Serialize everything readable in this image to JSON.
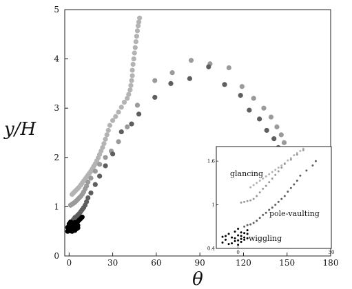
{
  "chart_data": [
    {
      "type": "scatter",
      "xlabel": "θ",
      "ylabel": "y/H",
      "xlim": [
        -3,
        180
      ],
      "ylim": [
        0,
        5
      ],
      "xticks": [
        0,
        30,
        60,
        90,
        120,
        150,
        180
      ],
      "yticks": [
        0,
        1,
        2,
        3,
        4,
        5
      ],
      "grid": false,
      "series": [
        {
          "color": "#b3b3b3",
          "points": [
            [
              2,
              1.25
            ],
            [
              3,
              1.28
            ],
            [
              4,
              1.31
            ],
            [
              5,
              1.34
            ],
            [
              6,
              1.37
            ],
            [
              7,
              1.4
            ],
            [
              8,
              1.44
            ],
            [
              9,
              1.48
            ],
            [
              10,
              1.52
            ],
            [
              11,
              1.56
            ],
            [
              12,
              1.6
            ],
            [
              13,
              1.64
            ],
            [
              14,
              1.68
            ],
            [
              15,
              1.72
            ],
            [
              16,
              1.77
            ],
            [
              17,
              1.82
            ],
            [
              18,
              1.87
            ],
            [
              19,
              1.93
            ],
            [
              20,
              1.99
            ],
            [
              21,
              2.06
            ],
            [
              22,
              2.13
            ],
            [
              23,
              2.2
            ],
            [
              24,
              2.28
            ],
            [
              25,
              2.37
            ],
            [
              26,
              2.46
            ],
            [
              27,
              2.55
            ],
            [
              28,
              2.65
            ],
            [
              30,
              2.75
            ],
            [
              32,
              2.83
            ],
            [
              34,
              2.92
            ],
            [
              36,
              3.02
            ],
            [
              38,
              3.12
            ],
            [
              40,
              3.2
            ],
            [
              41,
              3.28
            ],
            [
              42,
              3.37
            ],
            [
              42.5,
              3.46
            ],
            [
              43,
              3.56
            ],
            [
              43.5,
              3.66
            ],
            [
              43.5,
              3.77
            ],
            [
              44,
              3.89
            ],
            [
              44.5,
              4.0
            ],
            [
              45,
              4.12
            ],
            [
              45.5,
              4.23
            ],
            [
              46,
              4.35
            ],
            [
              46.5,
              4.46
            ],
            [
              47,
              4.57
            ],
            [
              47.5,
              4.67
            ],
            [
              48,
              4.75
            ],
            [
              48.5,
              4.83
            ]
          ]
        },
        {
          "color": "#9a9a9a",
          "points": [
            [
              1,
              1.03
            ],
            [
              2,
              1.05
            ],
            [
              3,
              1.07
            ],
            [
              4,
              1.09
            ],
            [
              5,
              1.12
            ],
            [
              6,
              1.15
            ],
            [
              7,
              1.18
            ],
            [
              8,
              1.21
            ],
            [
              9,
              1.25
            ],
            [
              10,
              1.3
            ],
            [
              11,
              1.36
            ],
            [
              12,
              1.42
            ],
            [
              13,
              1.5
            ],
            [
              15,
              1.58
            ],
            [
              18,
              1.72
            ],
            [
              21,
              1.86
            ],
            [
              25,
              2.0
            ],
            [
              29,
              2.13
            ],
            [
              34,
              2.32
            ],
            [
              40,
              2.62
            ],
            [
              47,
              3.06
            ],
            [
              59,
              3.56
            ],
            [
              71,
              3.72
            ],
            [
              84,
              3.97
            ],
            [
              97,
              3.9
            ],
            [
              110,
              3.82
            ],
            [
              119,
              3.44
            ],
            [
              127,
              3.2
            ],
            [
              134,
              3.0
            ],
            [
              139,
              2.82
            ],
            [
              143,
              2.62
            ],
            [
              146,
              2.46
            ],
            [
              148,
              2.3
            ],
            [
              150,
              2.16
            ],
            [
              152,
              2.04
            ],
            [
              154,
              1.96
            ],
            [
              156,
              1.9
            ]
          ]
        },
        {
          "color": "#5e5e5e",
          "points": [
            [
              0,
              0.56
            ],
            [
              1,
              0.6
            ],
            [
              1,
              0.64
            ],
            [
              2,
              0.67
            ],
            [
              2,
              0.7
            ],
            [
              3,
              0.72
            ],
            [
              3,
              0.74
            ],
            [
              4,
              0.76
            ],
            [
              4,
              0.78
            ],
            [
              5,
              0.8
            ],
            [
              6,
              0.83
            ],
            [
              7,
              0.86
            ],
            [
              8,
              0.9
            ],
            [
              9,
              0.94
            ],
            [
              10,
              0.98
            ],
            [
              11,
              1.03
            ],
            [
              12,
              1.1
            ],
            [
              13,
              1.18
            ],
            [
              15,
              1.28
            ],
            [
              18,
              1.45
            ],
            [
              21,
              1.62
            ],
            [
              25,
              1.83
            ],
            [
              30,
              2.07
            ],
            [
              36,
              2.52
            ],
            [
              43,
              2.68
            ],
            [
              48,
              2.88
            ],
            [
              59,
              3.22
            ],
            [
              70,
              3.5
            ],
            [
              83,
              3.6
            ],
            [
              96,
              3.84
            ],
            [
              107,
              3.48
            ],
            [
              118,
              3.26
            ],
            [
              124,
              2.96
            ],
            [
              131,
              2.78
            ],
            [
              136,
              2.55
            ],
            [
              141,
              2.38
            ],
            [
              144,
              2.2
            ],
            [
              146,
              2.05
            ]
          ]
        },
        {
          "color": "#000000",
          "points": [
            [
              -1,
              0.5
            ],
            [
              0,
              0.52
            ],
            [
              1,
              0.51
            ],
            [
              2,
              0.54
            ],
            [
              3,
              0.53
            ],
            [
              4,
              0.55
            ],
            [
              -1,
              0.58
            ],
            [
              0,
              0.6
            ],
            [
              1,
              0.57
            ],
            [
              2,
              0.59
            ],
            [
              3,
              0.62
            ],
            [
              4,
              0.6
            ],
            [
              5,
              0.58
            ],
            [
              0,
              0.65
            ],
            [
              1,
              0.63
            ],
            [
              2,
              0.67
            ],
            [
              3,
              0.65
            ],
            [
              4,
              0.68
            ],
            [
              5,
              0.64
            ],
            [
              6,
              0.62
            ],
            [
              6,
              0.7
            ],
            [
              7,
              0.73
            ],
            [
              8,
              0.76
            ],
            [
              9,
              0.79
            ],
            [
              0,
              0.55
            ],
            [
              2,
              0.5
            ],
            [
              4,
              0.52
            ],
            [
              5,
              0.55
            ],
            [
              6,
              0.57
            ],
            [
              1,
              0.69
            ]
          ]
        }
      ]
    },
    {
      "type": "scatter",
      "xlim": [
        -7,
        30
      ],
      "ylim": [
        0.4,
        1.8
      ],
      "xticks": [
        0,
        30
      ],
      "yticks": [
        0.4,
        1,
        1.6
      ],
      "ytick_labels": [
        "0.4",
        "1",
        "1.6"
      ],
      "grid": false,
      "annotations": [
        "glancing",
        "pole-vaulting",
        "wiggling"
      ],
      "series": [
        {
          "color": "#b3b3b3",
          "points": [
            [
              4,
              1.24
            ],
            [
              5,
              1.27
            ],
            [
              6,
              1.3
            ],
            [
              7,
              1.33
            ],
            [
              8,
              1.36
            ],
            [
              9,
              1.39
            ],
            [
              10,
              1.42
            ],
            [
              11,
              1.45
            ],
            [
              12,
              1.48
            ],
            [
              13,
              1.51
            ],
            [
              14,
              1.54
            ],
            [
              15,
              1.57
            ],
            [
              16,
              1.61
            ],
            [
              17,
              1.64
            ],
            [
              18,
              1.68
            ],
            [
              19,
              1.71
            ],
            [
              20,
              1.74
            ],
            [
              21,
              1.77
            ]
          ]
        },
        {
          "color": "#9a9a9a",
          "points": [
            [
              1,
              1.03
            ],
            [
              2,
              1.04
            ],
            [
              3,
              1.05
            ],
            [
              4,
              1.06
            ],
            [
              5,
              1.08
            ],
            [
              6,
              1.12
            ],
            [
              7,
              1.17
            ],
            [
              8,
              1.22
            ],
            [
              9,
              1.26
            ],
            [
              10,
              1.31
            ],
            [
              11,
              1.36
            ],
            [
              12,
              1.41
            ],
            [
              13,
              1.46
            ],
            [
              14,
              1.51
            ],
            [
              15,
              1.56
            ],
            [
              17,
              1.62
            ],
            [
              19,
              1.69
            ],
            [
              21,
              1.75
            ]
          ]
        },
        {
          "color": "#5e5e5e",
          "points": [
            [
              2,
              0.7
            ],
            [
              3,
              0.72
            ],
            [
              4,
              0.73
            ],
            [
              5,
              0.75
            ],
            [
              6,
              0.78
            ],
            [
              7,
              0.82
            ],
            [
              8,
              0.86
            ],
            [
              9,
              0.89
            ],
            [
              10,
              0.93
            ],
            [
              11,
              0.96
            ],
            [
              12,
              1.0
            ],
            [
              13,
              1.04
            ],
            [
              14,
              1.08
            ],
            [
              15,
              1.12
            ],
            [
              16,
              1.18
            ],
            [
              17,
              1.23
            ],
            [
              18,
              1.28
            ],
            [
              19,
              1.33
            ],
            [
              20,
              1.4
            ],
            [
              22,
              1.47
            ],
            [
              24,
              1.54
            ],
            [
              25,
              1.6
            ]
          ]
        },
        {
          "color": "#000000",
          "points": [
            [
              -5,
              0.48
            ],
            [
              -4,
              0.52
            ],
            [
              -3,
              0.46
            ],
            [
              -2,
              0.55
            ],
            [
              -1,
              0.5
            ],
            [
              0,
              0.58
            ],
            [
              1,
              0.53
            ],
            [
              2,
              0.61
            ],
            [
              -4,
              0.57
            ],
            [
              -2,
              0.47
            ],
            [
              0,
              0.51
            ],
            [
              1,
              0.62
            ],
            [
              2,
              0.55
            ],
            [
              3,
              0.6
            ],
            [
              -3,
              0.6
            ],
            [
              -1,
              0.63
            ],
            [
              0,
              0.45
            ],
            [
              1,
              0.49
            ],
            [
              2,
              0.52
            ],
            [
              3,
              0.65
            ],
            [
              -5,
              0.56
            ],
            [
              -1,
              0.54
            ],
            [
              1,
              0.57
            ],
            [
              3,
              0.54
            ],
            [
              0,
              0.67
            ]
          ]
        }
      ]
    }
  ]
}
